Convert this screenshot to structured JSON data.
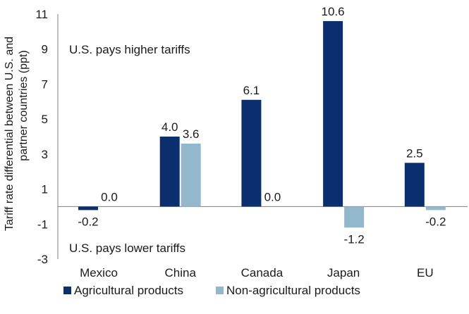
{
  "chart_data": {
    "type": "bar",
    "ylabel_line1": "Tariff rate differential between U.S. and",
    "ylabel_line2": "partner countries (ppt)",
    "categories": [
      "Mexico",
      "China",
      "Canada",
      "Japan",
      "EU"
    ],
    "series": [
      {
        "name": "Agricultural products",
        "color": "#0b2f6e",
        "values": [
          -0.2,
          4.0,
          6.1,
          10.6,
          2.5
        ],
        "labels": [
          "-0.2",
          "4.0",
          "6.1",
          "10.6",
          "2.5"
        ]
      },
      {
        "name": "Non-agricultural products",
        "color": "#93b8cb",
        "values": [
          0.0,
          3.6,
          0.0,
          -1.2,
          -0.2
        ],
        "labels": [
          "0.0",
          "3.6",
          "0.0",
          "-1.2",
          "-0.2"
        ]
      }
    ],
    "ylim": [
      -3,
      11
    ],
    "yticks": [
      -3,
      -1,
      1,
      3,
      5,
      7,
      9,
      11
    ],
    "annotations": {
      "upper": "U.S. pays higher tariffs",
      "lower": "U.S. pays lower tariffs"
    },
    "legend_position": "bottom-left",
    "grid": false
  }
}
